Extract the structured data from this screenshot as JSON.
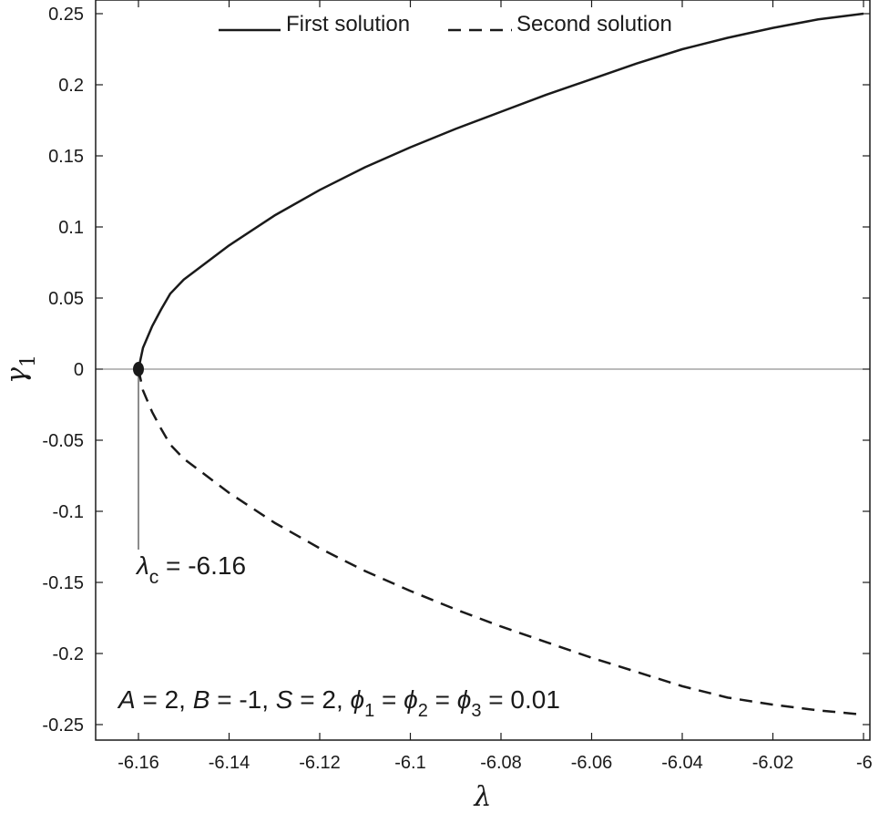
{
  "chart_data": {
    "type": "line",
    "title": "",
    "xlabel": "λ",
    "ylabel": "γ",
    "ylabel_subscript": "1",
    "xlim": [
      -6.165,
      -6.0
    ],
    "ylim": [
      -0.26,
      0.255
    ],
    "x_ticks": [
      -6.16,
      -6.14,
      -6.12,
      -6.1,
      -6.08,
      -6.06,
      -6.04,
      -6.02,
      -6.0
    ],
    "x_tick_labels": [
      "-6.16",
      "-6.14",
      "-6.12",
      "-6.1",
      "-6.08",
      "-6.06",
      "-6.04",
      "-6.02",
      "-6"
    ],
    "y_ticks": [
      0.25,
      0.2,
      0.15,
      0.1,
      0.05,
      0,
      -0.05,
      -0.1,
      -0.15,
      -0.2,
      -0.25
    ],
    "y_tick_labels": [
      "0.25",
      "0.2",
      "0.15",
      "0.1",
      "0.05",
      "0",
      "-0.05",
      "-0.1",
      "-0.15",
      "-0.2",
      "-0.25"
    ],
    "grid": false,
    "legend_position": "top",
    "series": [
      {
        "name": "First solution",
        "style": "solid",
        "x": [
          -6.16,
          -6.159,
          -6.157,
          -6.155,
          -6.153,
          -6.15,
          -6.14,
          -6.13,
          -6.12,
          -6.11,
          -6.1,
          -6.09,
          -6.08,
          -6.07,
          -6.06,
          -6.05,
          -6.04,
          -6.03,
          -6.02,
          -6.01,
          -6.0
        ],
        "y": [
          0.0,
          0.015,
          0.03,
          0.042,
          0.053,
          0.063,
          0.087,
          0.108,
          0.126,
          0.142,
          0.156,
          0.169,
          0.181,
          0.193,
          0.204,
          0.215,
          0.225,
          0.233,
          0.24,
          0.246,
          0.25
        ]
      },
      {
        "name": "Second solution",
        "style": "dashed",
        "x": [
          -6.16,
          -6.159,
          -6.157,
          -6.155,
          -6.153,
          -6.15,
          -6.14,
          -6.13,
          -6.12,
          -6.11,
          -6.1,
          -6.09,
          -6.08,
          -6.07,
          -6.06,
          -6.05,
          -6.04,
          -6.03,
          -6.02,
          -6.01,
          -6.0
        ],
        "y": [
          0.0,
          -0.015,
          -0.03,
          -0.042,
          -0.053,
          -0.063,
          -0.087,
          -0.108,
          -0.126,
          -0.142,
          -0.156,
          -0.169,
          -0.181,
          -0.192,
          -0.203,
          -0.213,
          -0.223,
          -0.231,
          -0.236,
          -0.24,
          -0.243
        ]
      }
    ],
    "critical_point": {
      "x": -6.16,
      "y": 0,
      "label": "λc = -6.16"
    },
    "annotations": {
      "critical_symbol": "λ",
      "critical_subscript": "c",
      "critical_value": " = -6.16",
      "params": "A = 2,  B = -1,  S = 2,  ϕ1 =  ϕ2 =  ϕ3 = 0.01"
    },
    "colors": {
      "line": "#1a1a1a",
      "zero_line": "#777777",
      "axis": "#1a1a1a"
    }
  }
}
